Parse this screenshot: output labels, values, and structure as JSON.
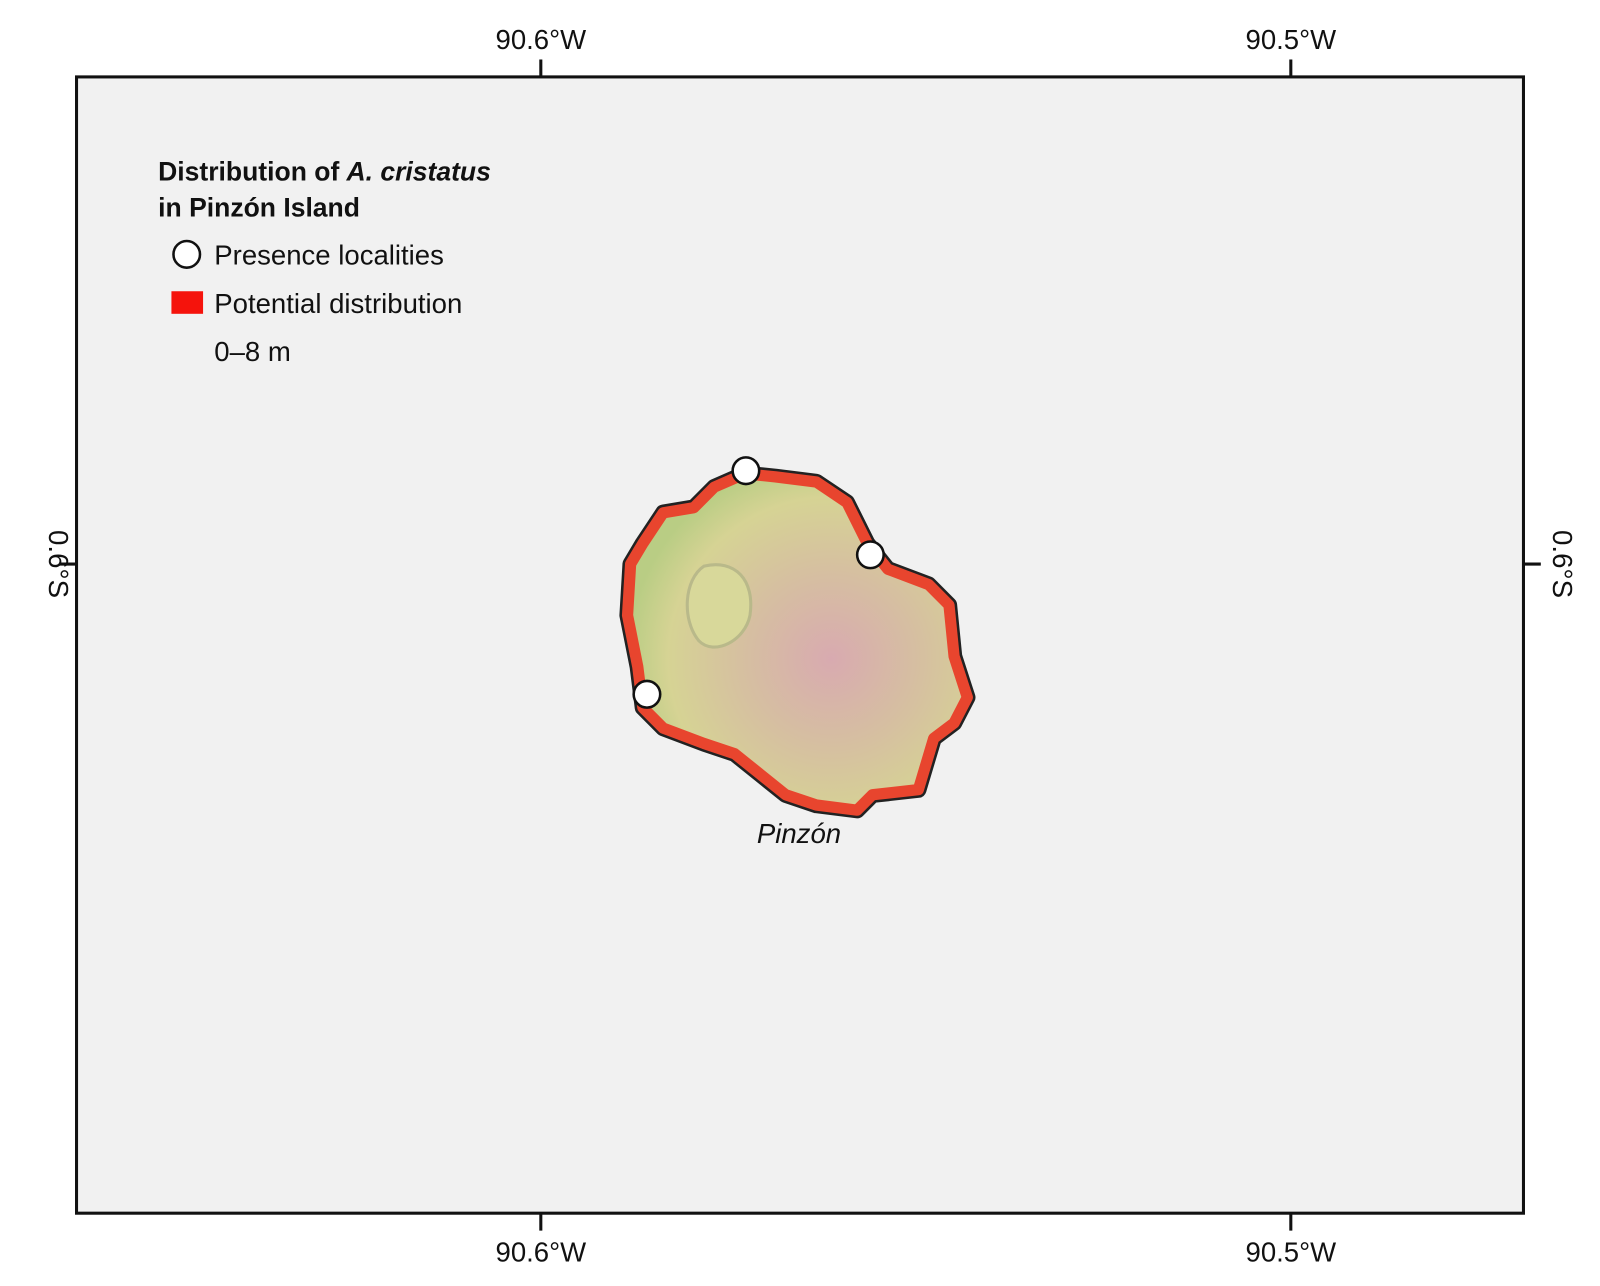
{
  "map": {
    "legend": {
      "title": [
        "Distribution of",
        "A. cristatus",
        "in Pinzón Island"
      ],
      "items": [
        "Presence localities",
        "Potential distribution",
        "0–8 m"
      ]
    },
    "longitudes": [
      "90.6°W",
      "90.5°W"
    ],
    "latitudes": [
      "0.6°S"
    ],
    "island_label": "Pinzón"
  }
}
